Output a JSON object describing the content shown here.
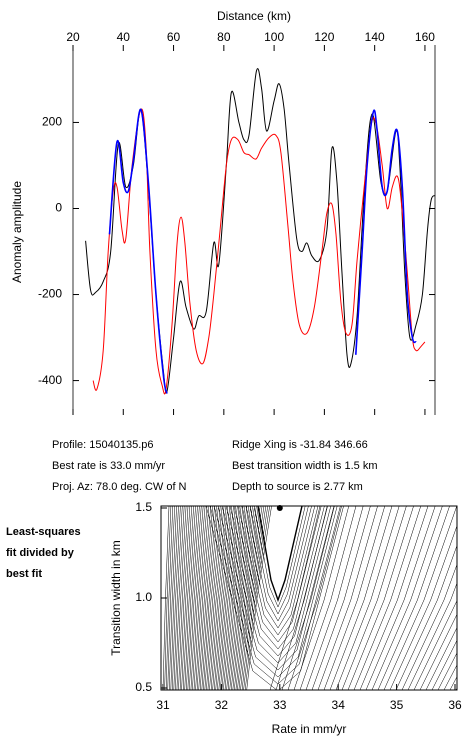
{
  "chart_data": [
    {
      "type": "line",
      "xlabel": "Distance (km)",
      "ylabel": "Anomaly amplitude",
      "xlim": [
        20,
        164
      ],
      "ylim": [
        -480,
        380
      ],
      "xticks": [
        20,
        40,
        60,
        80,
        100,
        120,
        140,
        160
      ],
      "yticks": [
        -400,
        -200,
        0,
        200
      ],
      "series": [
        {
          "color": "#000000",
          "x": [
            25,
            27,
            29,
            32,
            35,
            38,
            41,
            44,
            47,
            50,
            53,
            56,
            57.4,
            60,
            62.6,
            65,
            68,
            70,
            73,
            76,
            78,
            81,
            83,
            86,
            88,
            90,
            93,
            95,
            97,
            100,
            102,
            104,
            106,
            109,
            111,
            113,
            115,
            118,
            121,
            123,
            125,
            127,
            129,
            130.6,
            133,
            136,
            139,
            142.5,
            145,
            148.5,
            150,
            152,
            154,
            156.5,
            159,
            161,
            162.5,
            164
          ],
          "values": [
            -75,
            -190,
            -195,
            -170,
            -100,
            150,
            50,
            100,
            230,
            50,
            -200,
            -380,
            -425,
            -300,
            -170,
            -230,
            -280,
            -250,
            -240,
            -80,
            -130,
            100,
            270,
            200,
            160,
            170,
            320,
            280,
            180,
            250,
            290,
            230,
            100,
            -70,
            -100,
            -80,
            -110,
            -120,
            -50,
            140,
            60,
            -150,
            -340,
            -360,
            -250,
            50,
            220,
            60,
            40,
            180,
            100,
            -150,
            -300,
            -270,
            -200,
            -50,
            20,
            30
          ]
        },
        {
          "color": "#ff0000",
          "x": [
            28,
            29.5,
            32,
            34,
            36,
            37.5,
            39.5,
            41,
            43.5,
            47,
            49,
            50.6,
            53,
            55.4,
            57,
            59.4,
            61.4,
            63,
            64.5,
            66.5,
            69,
            71.7,
            74,
            76,
            78.5,
            81,
            83,
            85.6,
            88,
            90,
            92.8,
            95,
            98,
            100.7,
            102.7,
            105.5,
            107.5,
            110,
            113,
            116,
            119,
            121,
            123,
            124.6,
            126.6,
            128.6,
            131,
            133,
            136,
            138.8,
            140.8,
            143,
            145,
            147,
            149,
            150.5,
            153,
            155,
            156.5,
            158.5,
            160
          ],
          "values": [
            -400,
            -420,
            -330,
            -100,
            40,
            50,
            -50,
            -70,
            100,
            230,
            150,
            -100,
            -330,
            -410,
            -420,
            -270,
            -80,
            -20,
            -80,
            -220,
            -330,
            -360,
            -300,
            -200,
            -50,
            100,
            160,
            160,
            130,
            125,
            115,
            140,
            165,
            170,
            130,
            -40,
            -170,
            -270,
            -290,
            -230,
            -100,
            -10,
            10,
            -60,
            -220,
            -290,
            -270,
            -120,
            60,
            200,
            190,
            100,
            0,
            50,
            75,
            20,
            -150,
            -300,
            -330,
            -320,
            -310
          ]
        },
        {
          "color": "#0000ff",
          "x": [
            34.5,
            37.5,
            40,
            42,
            44,
            47,
            50,
            53,
            56,
            57.4,
            null,
            132.5,
            135,
            137,
            139.5,
            141,
            143,
            145,
            147,
            149,
            151,
            153,
            155,
            156.5
          ],
          "values": [
            -60,
            155,
            60,
            40,
            110,
            230,
            60,
            -200,
            -390,
            -430,
            null,
            -340,
            -100,
            100,
            225,
            180,
            50,
            40,
            140,
            180,
            50,
            -200,
            -300,
            -310
          ]
        }
      ]
    },
    {
      "type": "contour",
      "xlabel": "Rate in mm/yr",
      "ylabel": "Transition width in km",
      "xlim": [
        31,
        36
      ],
      "ylim": [
        0.5,
        1.5
      ],
      "xticks": [
        31,
        32,
        33,
        34,
        35,
        36
      ],
      "yticks": [
        0.5,
        {
          "value": 1,
          "label": "1.0"
        },
        1.5
      ],
      "best_fit": {
        "x": 33.0,
        "y": 1.5
      }
    }
  ],
  "profile_info": [
    "Profile: 15040135.p6",
    "Best rate is 33.0 mm/yr",
    "Proj. Az: 78.0 deg. CW of N"
  ],
  "fit_info": [
    "Ridge Xing is -31.84 346.66",
    "Best transition width is 1.5 km",
    "Depth to source is   2.77 km"
  ],
  "side_note": [
    "Least-squares",
    "fit divided by",
    "best fit"
  ]
}
